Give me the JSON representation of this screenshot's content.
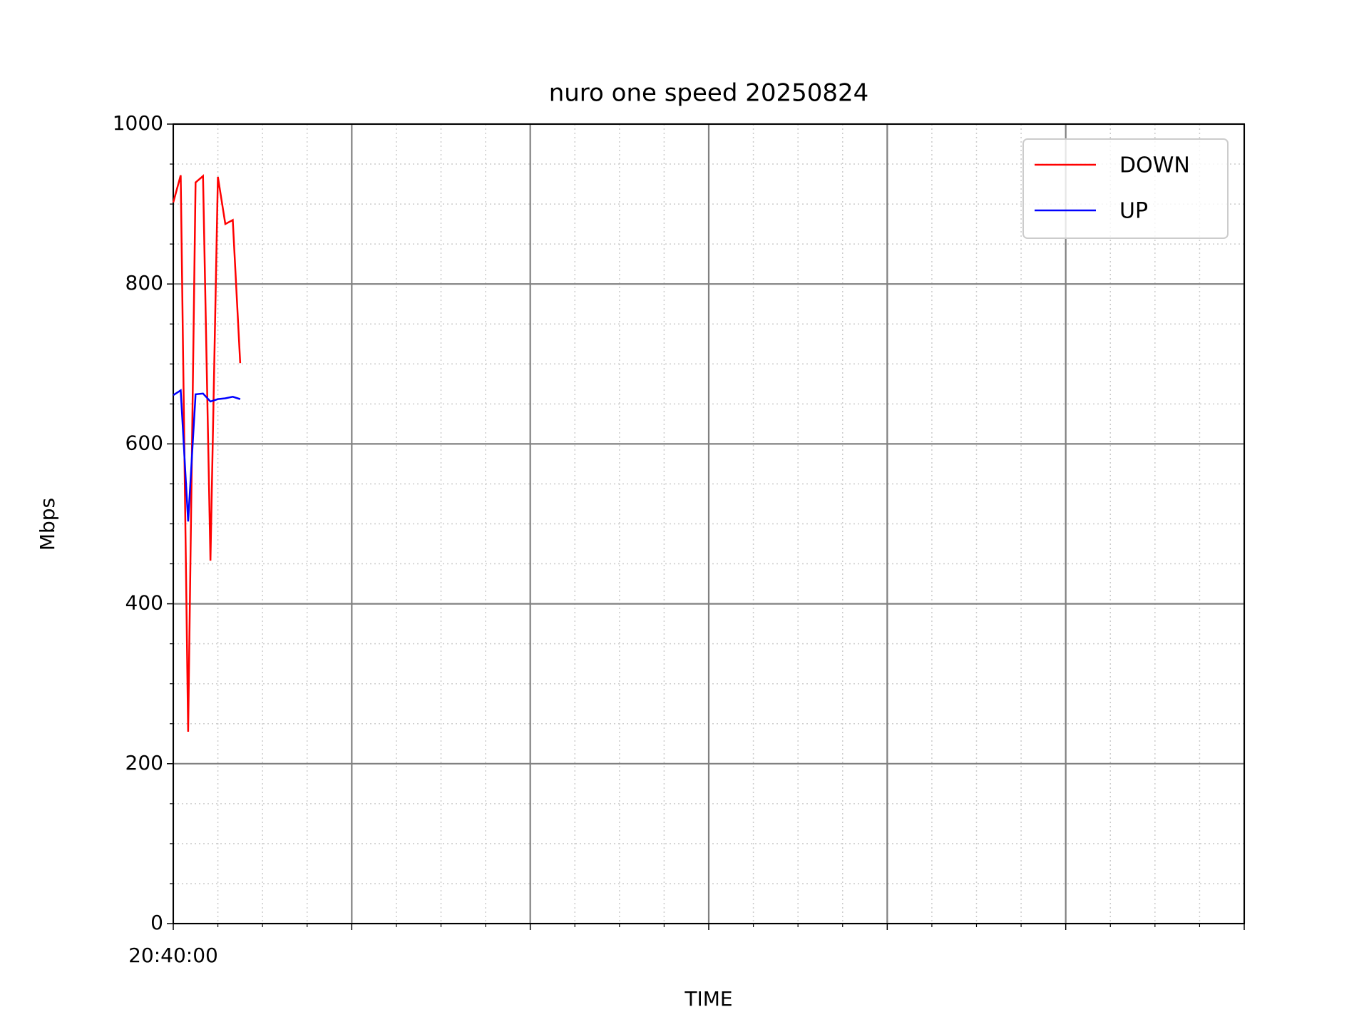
{
  "chart_data": {
    "type": "line",
    "title": "nuro one speed 20250824",
    "xlabel": "TIME",
    "ylabel": "Mbps",
    "x": [
      0,
      10,
      20,
      30,
      40,
      50,
      60,
      70,
      80,
      90
    ],
    "series": [
      {
        "name": "DOWN",
        "color": "#ff0000",
        "values": [
          902,
          936,
          240,
          927,
          935,
          454,
          934,
          875,
          880,
          701
        ]
      },
      {
        "name": "UP",
        "color": "#0000ff",
        "values": [
          661,
          667,
          503,
          662,
          663,
          653,
          656,
          657,
          659,
          656
        ]
      }
    ],
    "xlim": [
      0,
      1440
    ],
    "xticks": [
      {
        "value": 0,
        "label": "20:40:00"
      },
      {
        "value": 240,
        "label": null
      },
      {
        "value": 480,
        "label": null
      },
      {
        "value": 720,
        "label": null
      },
      {
        "value": 960,
        "label": null
      },
      {
        "value": 1200,
        "label": null
      },
      {
        "value": 1440,
        "label": null
      }
    ],
    "ylim": [
      0,
      1000
    ],
    "yticks": [
      0,
      200,
      400,
      600,
      800,
      1000
    ],
    "grid": true,
    "minor_grid": true,
    "legend": "upper right"
  }
}
